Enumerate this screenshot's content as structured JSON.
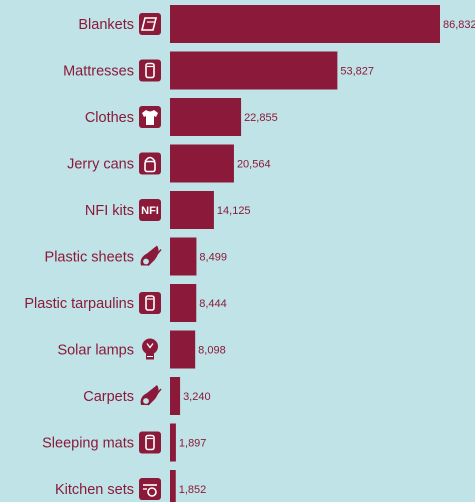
{
  "chart_data": {
    "type": "bar",
    "orientation": "horizontal",
    "categories": [
      "Blankets",
      "Mattresses",
      "Clothes",
      "Jerry cans",
      "NFI kits",
      "Plastic sheets",
      "Plastic tarpaulins",
      "Solar lamps",
      "Carpets",
      "Sleeping mats",
      "Kitchen sets"
    ],
    "values": [
      86832,
      53827,
      22855,
      20564,
      14125,
      8499,
      8444,
      8098,
      3240,
      1897,
      1852
    ],
    "value_labels": [
      "86,832",
      "53,827",
      "22,855",
      "20,564",
      "14,125",
      "8,499",
      "8,444",
      "8,098",
      "3,240",
      "1,897",
      "1,852"
    ],
    "icons": [
      "blanket-icon",
      "mattress-icon",
      "shirt-icon",
      "jerry-can-icon",
      "nfi-kit-icon",
      "plastic-sheet-icon",
      "tarpaulin-icon",
      "lamp-icon",
      "carpet-icon",
      "sleeping-mat-icon",
      "kitchen-set-icon"
    ],
    "nfi_badge_text": "NFI",
    "xlim": [
      0,
      86832
    ],
    "grid": false,
    "legend": "none",
    "colors": {
      "bar": "#8b1a3a",
      "background": "#bfe3e6",
      "text": "#8b1a3a"
    }
  }
}
